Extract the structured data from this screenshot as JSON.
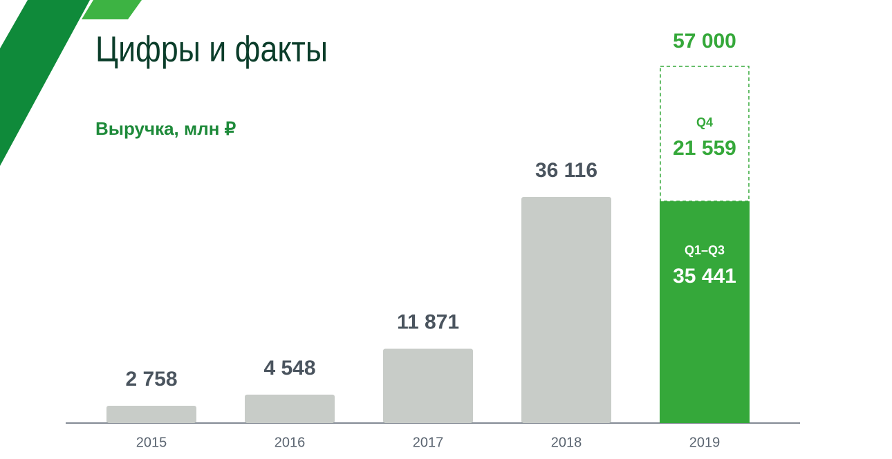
{
  "chart_data": {
    "type": "stacked-bar",
    "title": "Цифры и факты",
    "subtitle": "Выручка, млн ₽",
    "categories": [
      "2015",
      "2016",
      "2017",
      "2018",
      "2019"
    ],
    "series": [
      {
        "name": "Q1–Q3",
        "colors": [
          "#c8ccc8",
          "#c8ccc8",
          "#c8ccc8",
          "#c8ccc8",
          "#35a83a"
        ],
        "values": [
          2758,
          4548,
          11871,
          36116,
          35441
        ],
        "value_labels": [
          "2 758",
          "4 548",
          "11 871",
          "36 116",
          "35 441"
        ]
      },
      {
        "name": "Q4",
        "color": "#35a83a",
        "style": "dashed",
        "values": [
          null,
          null,
          null,
          null,
          21559
        ],
        "value_labels": [
          null,
          null,
          null,
          null,
          "21 559"
        ]
      }
    ],
    "total": {
      "value": 57000,
      "label": "57 000"
    }
  }
}
